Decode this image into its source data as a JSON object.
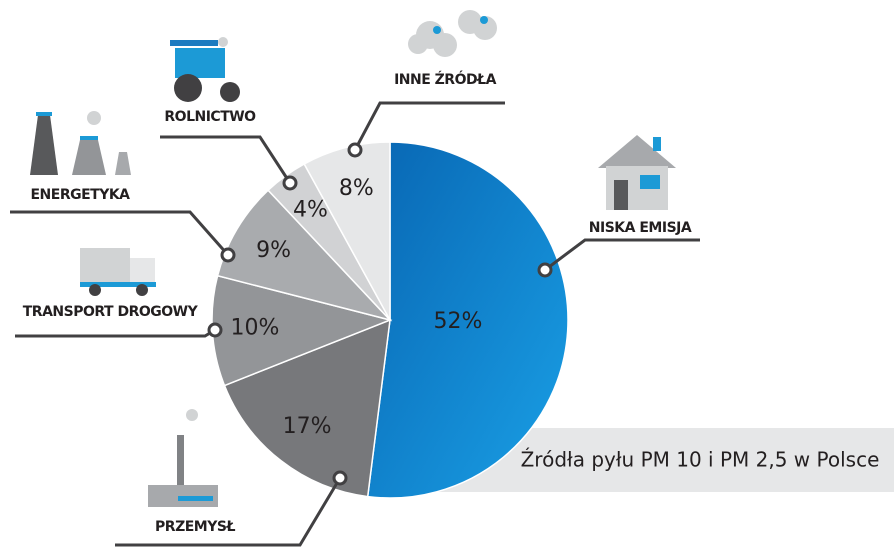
{
  "chart_data": {
    "type": "pie",
    "title": "Źródła pyłu PM 10 i PM 2,5 w Polsce",
    "categories": [
      "NISKA EMISJA",
      "PRZEMYSŁ",
      "TRANSPORT DROGOWY",
      "ENERGETYKA",
      "ROLNICTWO",
      "INNE ŹRÓDŁA"
    ],
    "values": [
      52,
      17,
      10,
      9,
      4,
      8
    ],
    "value_labels": [
      "52%",
      "17%",
      "10%",
      "9%",
      "4%",
      "8%"
    ],
    "colors": [
      "#0b82cf",
      "#77787b",
      "#939598",
      "#a9abae",
      "#d1d2d4",
      "#e6e7e8"
    ]
  }
}
